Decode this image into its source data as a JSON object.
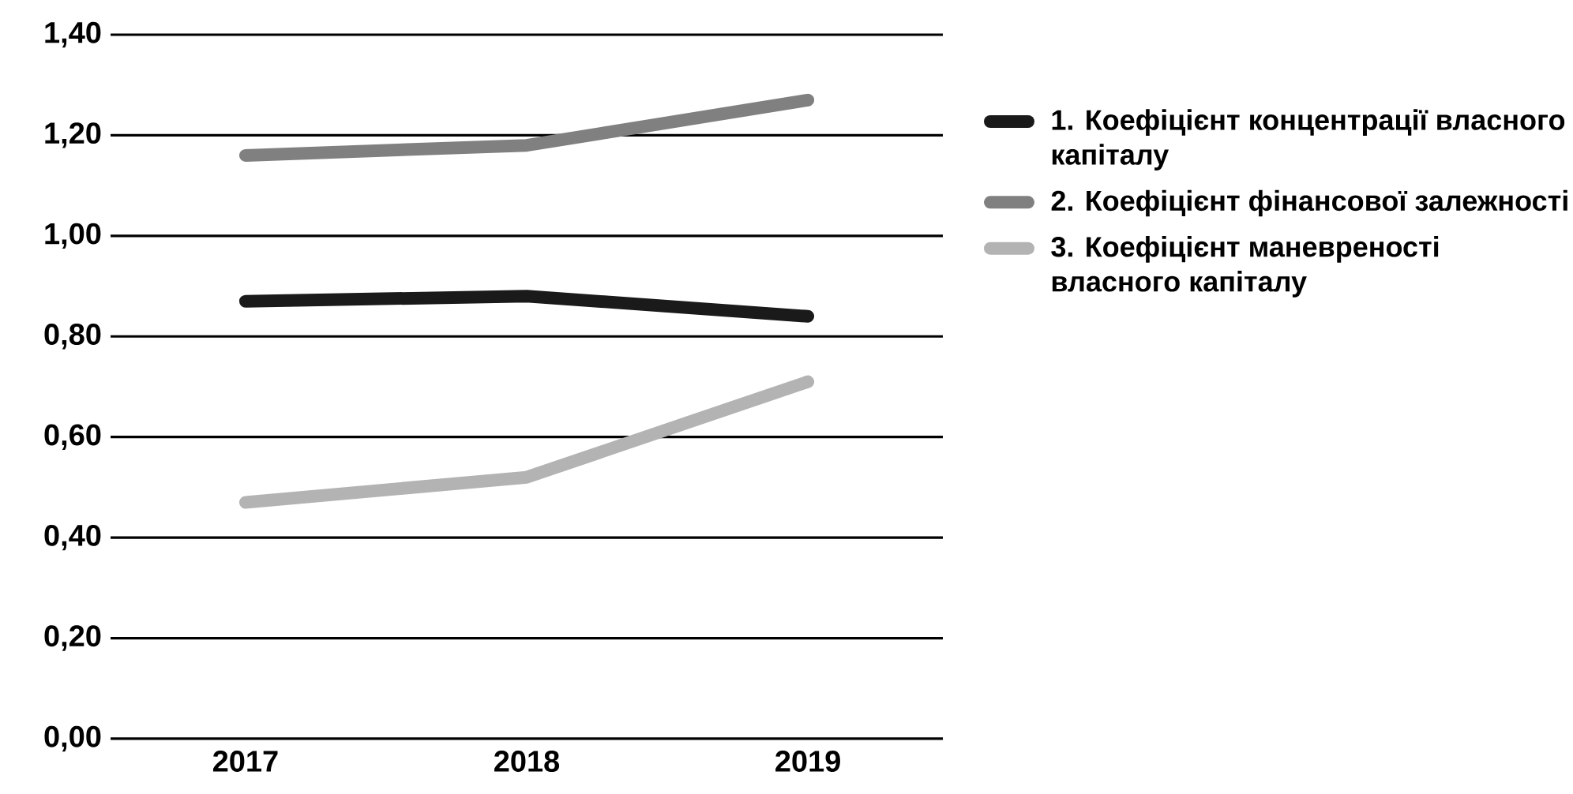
{
  "chart_data": {
    "type": "line",
    "categories": [
      "2017",
      "2018",
      "2019"
    ],
    "series": [
      {
        "name": "1. Коефіцієнт концентрації власного капіталу",
        "color": "#1a1a1a",
        "values": [
          0.87,
          0.88,
          0.84
        ]
      },
      {
        "name": "2. Коефіцієнт фінансової залежності",
        "color": "#808080",
        "values": [
          1.16,
          1.18,
          1.27
        ]
      },
      {
        "name": "3. Коефіцієнт маневреності власного капіталу",
        "color": "#b3b3b3",
        "values": [
          0.47,
          0.52,
          0.71
        ]
      }
    ],
    "ylim": [
      0,
      1.4
    ],
    "yticks": [
      {
        "value": 0,
        "label": "0,00"
      },
      {
        "value": 0.2,
        "label": "0,20"
      },
      {
        "value": 0.4,
        "label": "0,40"
      },
      {
        "value": 0.6,
        "label": "0,60"
      },
      {
        "value": 0.8,
        "label": "0,80"
      },
      {
        "value": 1.0,
        "label": "1,00"
      },
      {
        "value": 1.2,
        "label": "1,20"
      },
      {
        "value": 1.4,
        "label": "1,40"
      }
    ],
    "grid": "y",
    "legend": "right",
    "marker": "none",
    "line_style": "solid"
  }
}
